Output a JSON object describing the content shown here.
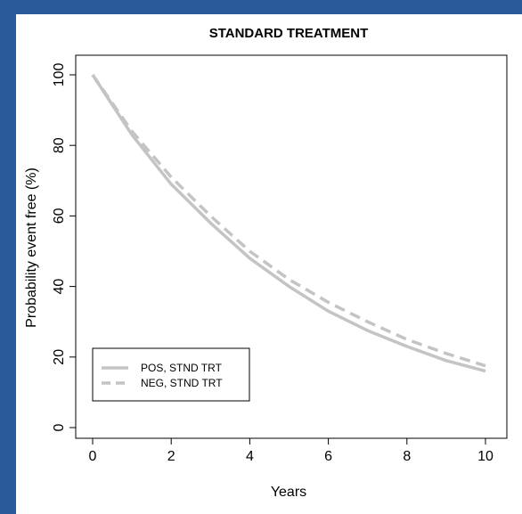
{
  "chart_data": {
    "type": "line",
    "title": "STANDARD TREATMENT",
    "xlabel": "Years",
    "ylabel": "Probability event free (%)",
    "xlim": [
      0,
      10
    ],
    "ylim": [
      0,
      100
    ],
    "xticks": [
      "0",
      "2",
      "4",
      "6",
      "8",
      "10"
    ],
    "yticks": [
      "0",
      "20",
      "40",
      "60",
      "80",
      "100"
    ],
    "grid": false,
    "legend_position": "bottom-left",
    "series": [
      {
        "name": "POS, STND TRT",
        "style": "solid",
        "color": "#c4c4c4",
        "x": [
          0,
          1,
          2,
          3,
          4,
          5,
          6,
          7,
          8,
          9,
          10
        ],
        "y": [
          100,
          83,
          69,
          58,
          48,
          40,
          33,
          27.5,
          23,
          19,
          16
        ]
      },
      {
        "name": "NEG, STND TRT",
        "style": "dashed",
        "color": "#c4c4c4",
        "x": [
          0,
          1,
          2,
          3,
          4,
          5,
          6,
          7,
          8,
          9,
          10
        ],
        "y": [
          100,
          84,
          71,
          60,
          50,
          42,
          35.5,
          30,
          25,
          21,
          17.5
        ]
      }
    ]
  }
}
